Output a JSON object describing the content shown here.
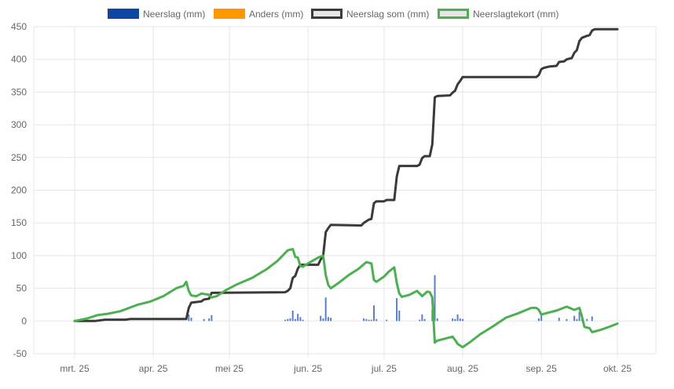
{
  "chart_data": {
    "type": "line",
    "title": "",
    "xlabel": "",
    "ylabel": "",
    "ylim": [
      -50,
      450
    ],
    "y_ticks": [
      -50,
      0,
      50,
      100,
      150,
      200,
      250,
      300,
      350,
      400,
      450
    ],
    "x_ticks": [
      {
        "label": "mrt. 25",
        "day": 0
      },
      {
        "label": "apr. 25",
        "day": 31
      },
      {
        "label": "mei 25",
        "day": 61
      },
      {
        "label": "jun. 25",
        "day": 92
      },
      {
        "label": "jul. 25",
        "day": 122
      },
      {
        "label": "aug. 25",
        "day": 153
      },
      {
        "label": "sep. 25",
        "day": 184
      },
      {
        "label": "okt. 25",
        "day": 214
      }
    ],
    "grid": true,
    "legend_position": "top",
    "legend": [
      {
        "name": "Neerslag (mm)",
        "color": "#0d47a1",
        "fill": "#0d47a1",
        "style": "box"
      },
      {
        "name": "Anders (mm)",
        "color": "#ff9800",
        "fill": "#ff9800",
        "style": "box"
      },
      {
        "name": "Neerslag som (mm)",
        "color": "#3a3a3a",
        "fill": "#e6e6e6",
        "style": "outline"
      },
      {
        "name": "Neerslagtekort (mm)",
        "color": "#4caf50",
        "fill": "#e6e6e6",
        "style": "outline"
      }
    ],
    "series": [
      {
        "name": "Neerslag (mm)",
        "type": "bar",
        "color": "#5b7fc7",
        "points": [
          [
            45,
            10
          ],
          [
            46,
            5
          ],
          [
            51,
            3
          ],
          [
            53,
            4
          ],
          [
            54,
            9
          ],
          [
            83,
            2
          ],
          [
            84,
            3
          ],
          [
            85,
            4
          ],
          [
            86,
            16
          ],
          [
            87,
            3
          ],
          [
            88,
            11
          ],
          [
            89,
            6
          ],
          [
            90,
            2
          ],
          [
            97,
            8
          ],
          [
            98,
            4
          ],
          [
            99,
            36
          ],
          [
            100,
            6
          ],
          [
            101,
            5
          ],
          [
            114,
            4
          ],
          [
            115,
            3
          ],
          [
            116,
            2
          ],
          [
            117,
            2
          ],
          [
            118,
            24
          ],
          [
            119,
            3
          ],
          [
            123,
            2
          ],
          [
            127,
            35
          ],
          [
            128,
            16
          ],
          [
            136,
            2
          ],
          [
            137,
            10
          ],
          [
            138,
            3
          ],
          [
            141,
            18
          ],
          [
            142,
            70
          ],
          [
            143,
            4
          ],
          [
            149,
            4
          ],
          [
            150,
            3
          ],
          [
            151,
            10
          ],
          [
            152,
            4
          ],
          [
            153,
            3
          ],
          [
            183,
            4
          ],
          [
            184,
            9
          ],
          [
            191,
            5
          ],
          [
            194,
            3
          ],
          [
            197,
            8
          ],
          [
            198,
            3
          ],
          [
            199,
            14
          ],
          [
            200,
            4
          ],
          [
            202,
            3
          ],
          [
            204,
            7
          ]
        ]
      },
      {
        "name": "Neerslag som (mm)",
        "type": "line",
        "color": "#3a3a3a",
        "points": [
          [
            0,
            0
          ],
          [
            8,
            0
          ],
          [
            12,
            2
          ],
          [
            20,
            2
          ],
          [
            22,
            3
          ],
          [
            44,
            3
          ],
          [
            45,
            20
          ],
          [
            46,
            28
          ],
          [
            50,
            30
          ],
          [
            51,
            33
          ],
          [
            53,
            34
          ],
          [
            54,
            43
          ],
          [
            83,
            44
          ],
          [
            84,
            46
          ],
          [
            85,
            50
          ],
          [
            86,
            66
          ],
          [
            87,
            69
          ],
          [
            88,
            80
          ],
          [
            89,
            86
          ],
          [
            96,
            86
          ],
          [
            97,
            94
          ],
          [
            98,
            100
          ],
          [
            99,
            136
          ],
          [
            100,
            142
          ],
          [
            101,
            147
          ],
          [
            113,
            146
          ],
          [
            114,
            150
          ],
          [
            116,
            155
          ],
          [
            117,
            156
          ],
          [
            118,
            180
          ],
          [
            119,
            183
          ],
          [
            122,
            183
          ],
          [
            123,
            185
          ],
          [
            126,
            185
          ],
          [
            127,
            221
          ],
          [
            128,
            237
          ],
          [
            135,
            237
          ],
          [
            136,
            239
          ],
          [
            137,
            249
          ],
          [
            138,
            252
          ],
          [
            140,
            252
          ],
          [
            141,
            270
          ],
          [
            142,
            342
          ],
          [
            143,
            344
          ],
          [
            148,
            345
          ],
          [
            149,
            349
          ],
          [
            150,
            352
          ],
          [
            151,
            362
          ],
          [
            152,
            367
          ],
          [
            153,
            373
          ],
          [
            182,
            373
          ],
          [
            183,
            376
          ],
          [
            184,
            385
          ],
          [
            185,
            387
          ],
          [
            187,
            389
          ],
          [
            190,
            390
          ],
          [
            191,
            396
          ],
          [
            193,
            397
          ],
          [
            194,
            400
          ],
          [
            196,
            402
          ],
          [
            197,
            410
          ],
          [
            198,
            414
          ],
          [
            199,
            428
          ],
          [
            200,
            433
          ],
          [
            202,
            436
          ],
          [
            203,
            437
          ],
          [
            204,
            444
          ],
          [
            205,
            446
          ],
          [
            214,
            446
          ]
        ]
      },
      {
        "name": "Neerslagtekort (mm)",
        "type": "line",
        "color": "#4caf50",
        "points": [
          [
            0,
            0
          ],
          [
            5,
            4
          ],
          [
            9,
            9
          ],
          [
            13,
            11
          ],
          [
            18,
            15
          ],
          [
            25,
            25
          ],
          [
            30,
            30
          ],
          [
            35,
            38
          ],
          [
            40,
            50
          ],
          [
            43,
            54
          ],
          [
            44,
            60
          ],
          [
            45,
            46
          ],
          [
            46,
            39
          ],
          [
            48,
            38
          ],
          [
            50,
            42
          ],
          [
            53,
            40
          ],
          [
            54,
            36
          ],
          [
            56,
            38
          ],
          [
            60,
            48
          ],
          [
            64,
            56
          ],
          [
            70,
            66
          ],
          [
            76,
            80
          ],
          [
            80,
            92
          ],
          [
            83,
            104
          ],
          [
            84,
            108
          ],
          [
            86,
            110
          ],
          [
            87,
            98
          ],
          [
            88,
            97
          ],
          [
            89,
            84
          ],
          [
            90,
            83
          ],
          [
            92,
            88
          ],
          [
            96,
            97
          ],
          [
            98,
            100
          ],
          [
            99,
            70
          ],
          [
            100,
            55
          ],
          [
            101,
            50
          ],
          [
            104,
            58
          ],
          [
            108,
            70
          ],
          [
            112,
            80
          ],
          [
            115,
            90
          ],
          [
            117,
            88
          ],
          [
            118,
            63
          ],
          [
            119,
            60
          ],
          [
            122,
            68
          ],
          [
            124,
            76
          ],
          [
            126,
            82
          ],
          [
            127,
            58
          ],
          [
            128,
            42
          ],
          [
            129,
            37
          ],
          [
            132,
            40
          ],
          [
            135,
            46
          ],
          [
            137,
            38
          ],
          [
            139,
            45
          ],
          [
            140,
            44
          ],
          [
            141,
            36
          ],
          [
            142,
            -33
          ],
          [
            143,
            -30
          ],
          [
            146,
            -27
          ],
          [
            149,
            -24
          ],
          [
            150,
            -29
          ],
          [
            151,
            -35
          ],
          [
            153,
            -40
          ],
          [
            156,
            -32
          ],
          [
            160,
            -20
          ],
          [
            165,
            -8
          ],
          [
            170,
            5
          ],
          [
            175,
            12
          ],
          [
            180,
            20
          ],
          [
            182,
            20
          ],
          [
            183,
            17
          ],
          [
            184,
            10
          ],
          [
            186,
            12
          ],
          [
            190,
            16
          ],
          [
            194,
            22
          ],
          [
            197,
            17
          ],
          [
            199,
            20
          ],
          [
            200,
            7
          ],
          [
            201,
            -9
          ],
          [
            203,
            -11
          ],
          [
            204,
            -17
          ],
          [
            207,
            -14
          ],
          [
            210,
            -10
          ],
          [
            214,
            -4
          ]
        ]
      }
    ]
  }
}
